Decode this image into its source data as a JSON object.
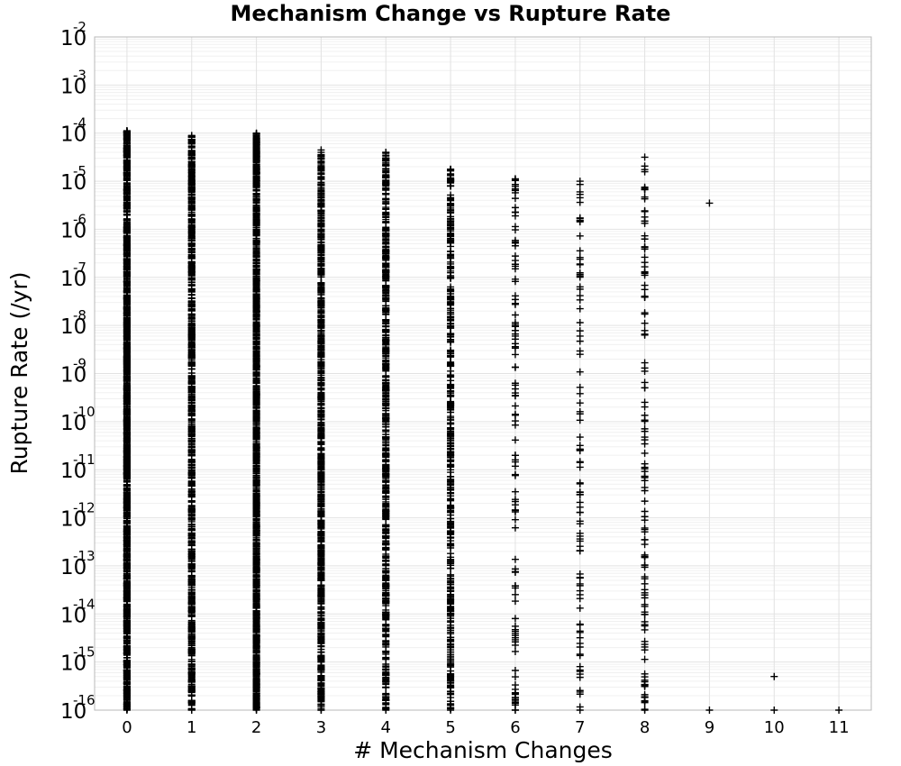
{
  "chart_data": {
    "type": "scatter",
    "title": "Mechanism Change vs Rupture Rate",
    "xlabel": "# Mechanism Changes",
    "ylabel": "Rupture Rate (/yr)",
    "x_ticks": [
      "0",
      "1",
      "2",
      "3",
      "4",
      "5",
      "6",
      "7",
      "8",
      "9",
      "10",
      "11"
    ],
    "xlim": [
      -0.5,
      11.5
    ],
    "y_scale": "log",
    "ylim": [
      1e-16,
      0.01
    ],
    "y_tick_base": "10",
    "y_tick_exponents": [
      "-16",
      "-15",
      "-14",
      "-13",
      "-12",
      "-11",
      "-10",
      "-9",
      "-8",
      "-7",
      "-6",
      "-5",
      "-4",
      "-3",
      "-2"
    ],
    "grid": true,
    "marker": "plus",
    "marker_color": "#000000",
    "columns": [
      {
        "x": 0,
        "count": 1400,
        "max_log10": -3.95,
        "min_log10": -16
      },
      {
        "x": 1,
        "count": 900,
        "max_log10": -4.05,
        "min_log10": -16
      },
      {
        "x": 2,
        "count": 1300,
        "max_log10": -4.0,
        "min_log10": -16
      },
      {
        "x": 3,
        "count": 800,
        "max_log10": -4.35,
        "min_log10": -16
      },
      {
        "x": 4,
        "count": 650,
        "max_log10": -4.4,
        "min_log10": -16
      },
      {
        "x": 5,
        "count": 450,
        "max_log10": -4.75,
        "min_log10": -16
      },
      {
        "x": 6,
        "count": 110,
        "max_log10": -4.95,
        "min_log10": -16
      },
      {
        "x": 7,
        "count": 95,
        "max_log10": -5.0,
        "min_log10": -16
      },
      {
        "x": 8,
        "count": 120,
        "max_log10": -4.5,
        "min_log10": -16
      }
    ],
    "points": [
      {
        "x": 9,
        "y": 3.5e-06
      },
      {
        "x": 9,
        "y": 1e-16
      },
      {
        "x": 10,
        "y": 5e-16
      },
      {
        "x": 10,
        "y": 1e-16
      },
      {
        "x": 11,
        "y": 1e-16
      }
    ]
  }
}
